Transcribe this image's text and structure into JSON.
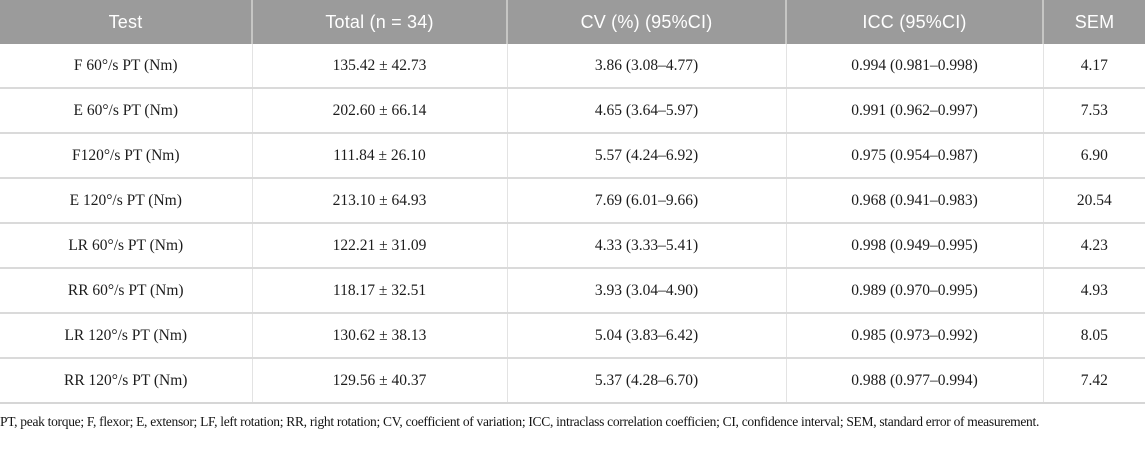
{
  "table": {
    "columns": [
      "Test",
      "Total (n = 34)",
      "CV (%) (95%CI)",
      "ICC (95%CI)",
      "SEM"
    ],
    "rows": [
      [
        "F 60°/s PT (Nm)",
        "135.42 ± 42.73",
        "3.86 (3.08–4.77)",
        "0.994 (0.981–0.998)",
        "4.17"
      ],
      [
        "E 60°/s PT (Nm)",
        "202.60 ± 66.14",
        "4.65 (3.64–5.97)",
        "0.991 (0.962–0.997)",
        "7.53"
      ],
      [
        "F120°/s PT (Nm)",
        "111.84 ± 26.10",
        "5.57 (4.24–6.92)",
        "0.975 (0.954–0.987)",
        "6.90"
      ],
      [
        "E 120°/s PT (Nm)",
        "213.10 ± 64.93",
        "7.69 (6.01–9.66)",
        "0.968 (0.941–0.983)",
        "20.54"
      ],
      [
        "LR 60°/s PT (Nm)",
        "122.21 ± 31.09",
        "4.33 (3.33–5.41)",
        "0.998 (0.949–0.995)",
        "4.23"
      ],
      [
        "RR 60°/s PT (Nm)",
        "118.17 ± 32.51",
        "3.93 (3.04–4.90)",
        "0.989 (0.970–0.995)",
        "4.93"
      ],
      [
        "LR 120°/s PT (Nm)",
        "130.62 ± 38.13",
        "5.04 (3.83–6.42)",
        "0.985 (0.973–0.992)",
        "8.05"
      ],
      [
        "RR 120°/s PT (Nm)",
        "129.56 ± 40.37",
        "5.37 (4.28–6.70)",
        "0.988 (0.977–0.994)",
        "7.42"
      ]
    ]
  },
  "footnote": "PT, peak torque; F, flexor; E, extensor; LF, left rotation; RR, right rotation; CV, coefficient of variation; ICC, intraclass correlation coefficien; CI, confidence interval; SEM, standard error of measurement.",
  "colors": {
    "header_bg": "#9b9b9b",
    "header_text": "#ffffff",
    "body_text": "#1c1c1c",
    "row_border": "#dadada",
    "col_border": "#e3e3e3"
  }
}
